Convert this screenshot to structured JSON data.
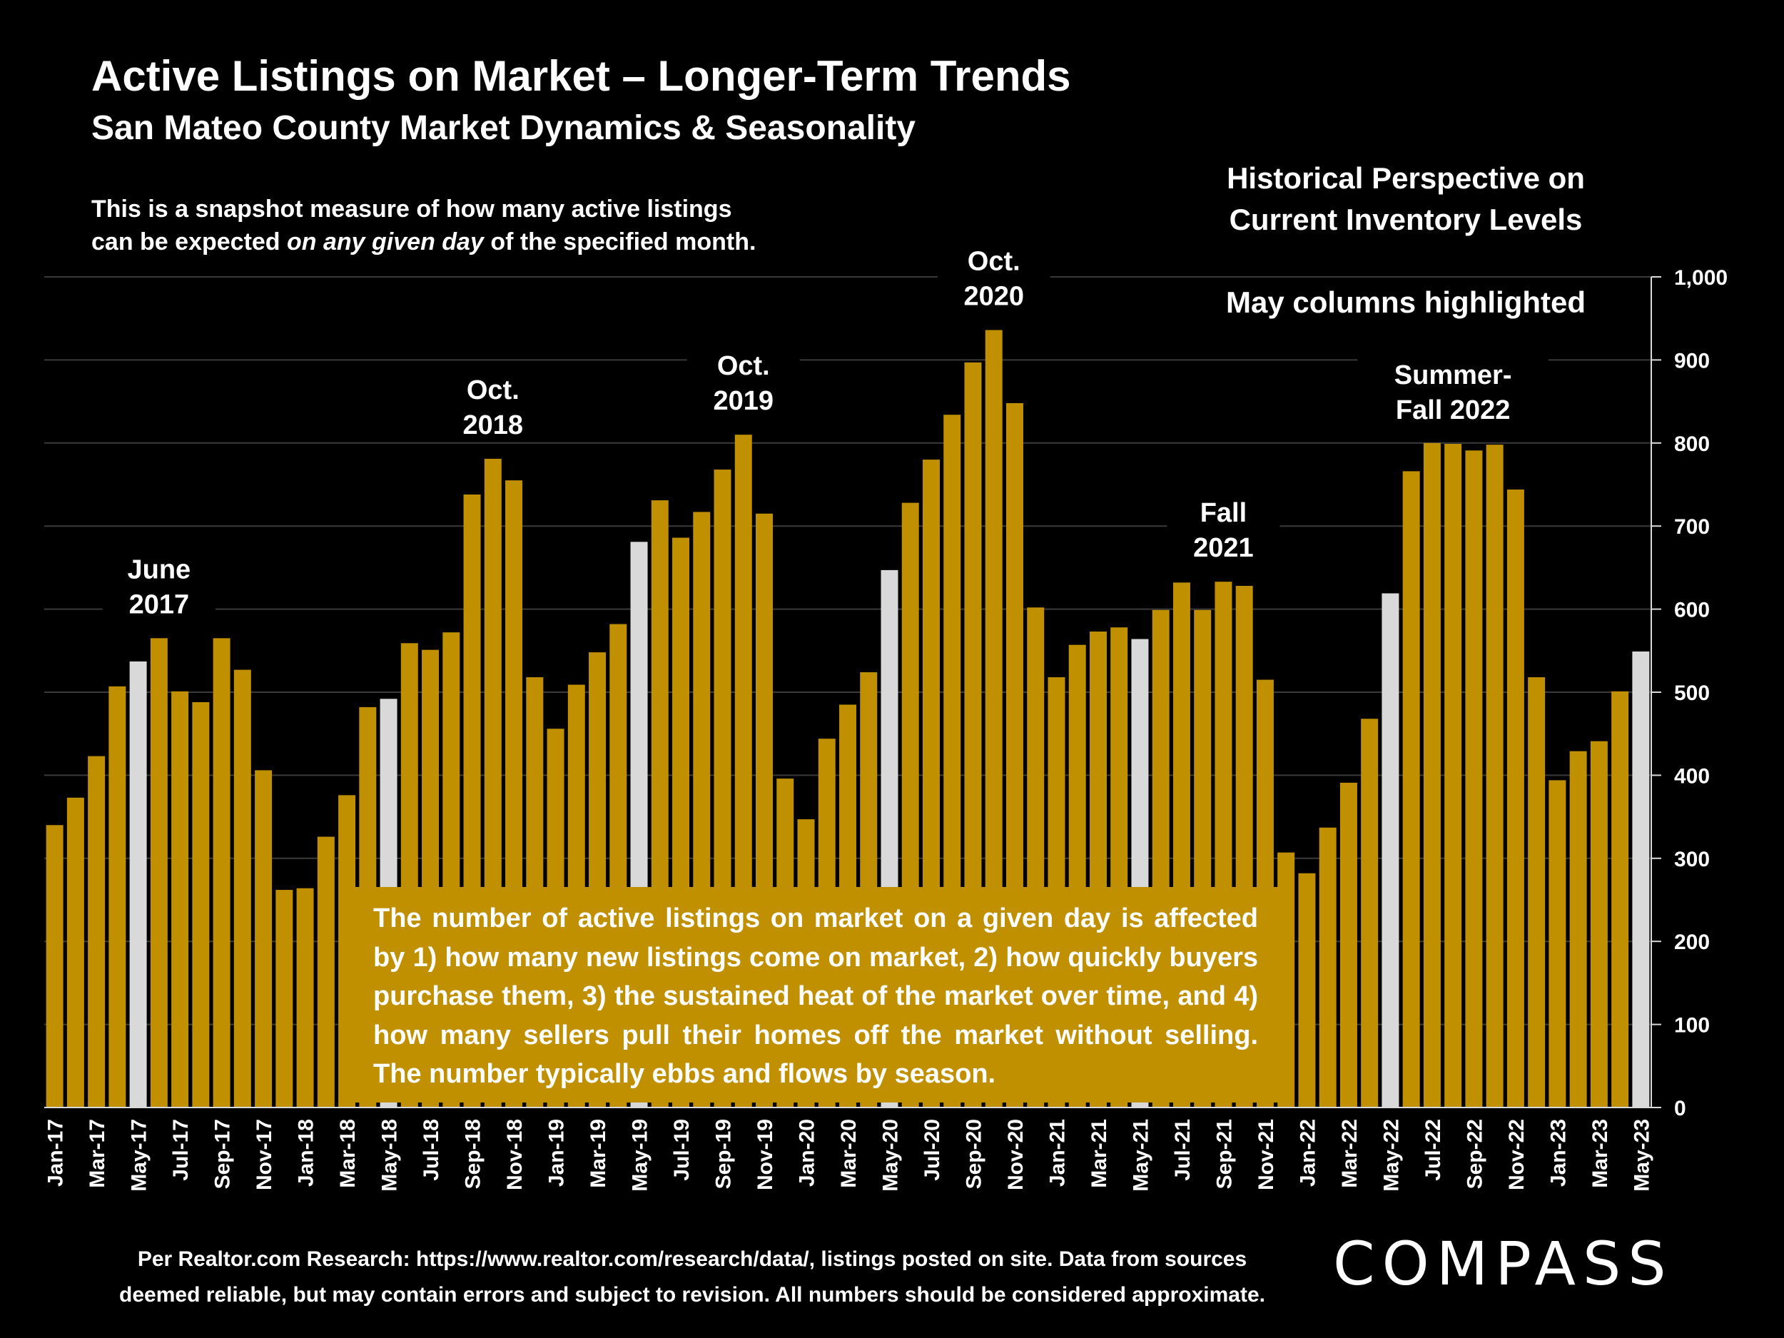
{
  "header": {
    "title": "Active Listings on Market – Longer-Term Trends",
    "subtitle": "San Mateo County Market Dynamics & Seasonality",
    "note_line1": "This is a snapshot measure of how many active listings",
    "note_line2_pre": "can be expected ",
    "note_line2_em": "on any given day",
    "note_line2_post": " of the specified month."
  },
  "perspective": {
    "line1": "Historical Perspective on",
    "line2": "Current Inventory Levels",
    "highlight_note": "May columns highlighted"
  },
  "info_box": {
    "text": "The number of active listings on market on a given day is affected by 1) how many new listings come on market, 2) how quickly buyers purchase them, 3) the sustained heat of the market over time, and 4) how many sellers pull their homes off the market without selling. The number typically ebbs and flows by season."
  },
  "footer": {
    "source_line1": "Per Realtor.com Research:  https://www.realtor.com/research/data/, listings posted on site. Data from sources",
    "source_line2": "deemed reliable, but may contain errors and subject to revision. All numbers should be considered approximate.",
    "logo": "COMPASS"
  },
  "chart_data": {
    "type": "bar",
    "ylim": [
      0,
      1000
    ],
    "yticks": [
      "0",
      "100",
      "200",
      "300",
      "400",
      "500",
      "600",
      "700",
      "800",
      "900",
      "1,000"
    ],
    "y_axis_position": "right",
    "grid": true,
    "colors": {
      "bar": "#c09000",
      "highlight": "#d9d9d9",
      "background": "#000000"
    },
    "categories": [
      "Jan-17",
      "Feb-17",
      "Mar-17",
      "Apr-17",
      "May-17",
      "Jun-17",
      "Jul-17",
      "Aug-17",
      "Sep-17",
      "Oct-17",
      "Nov-17",
      "Dec-17",
      "Jan-18",
      "Feb-18",
      "Mar-18",
      "Apr-18",
      "May-18",
      "Jun-18",
      "Jul-18",
      "Aug-18",
      "Sep-18",
      "Oct-18",
      "Nov-18",
      "Dec-18",
      "Jan-19",
      "Feb-19",
      "Mar-19",
      "Apr-19",
      "May-19",
      "Jun-19",
      "Jul-19",
      "Aug-19",
      "Sep-19",
      "Oct-19",
      "Nov-19",
      "Dec-19",
      "Jan-20",
      "Feb-20",
      "Mar-20",
      "Apr-20",
      "May-20",
      "Jun-20",
      "Jul-20",
      "Aug-20",
      "Sep-20",
      "Oct-20",
      "Nov-20",
      "Dec-20",
      "Jan-21",
      "Feb-21",
      "Mar-21",
      "Apr-21",
      "May-21",
      "Jun-21",
      "Jul-21",
      "Aug-21",
      "Sep-21",
      "Oct-21",
      "Nov-21",
      "Dec-21",
      "Jan-22",
      "Feb-22",
      "Mar-22",
      "Apr-22",
      "May-22",
      "Jun-22",
      "Jul-22",
      "Aug-22",
      "Sep-22",
      "Oct-22",
      "Nov-22",
      "Dec-22",
      "Jan-23",
      "Feb-23",
      "Mar-23",
      "Apr-23",
      "May-23"
    ],
    "values": [
      340,
      373,
      423,
      507,
      537,
      565,
      501,
      488,
      565,
      527,
      406,
      262,
      264,
      326,
      376,
      482,
      492,
      559,
      551,
      572,
      738,
      781,
      755,
      518,
      456,
      509,
      548,
      582,
      681,
      731,
      686,
      717,
      768,
      810,
      715,
      396,
      347,
      444,
      485,
      524,
      647,
      728,
      780,
      834,
      897,
      936,
      848,
      602,
      518,
      557,
      573,
      578,
      564,
      599,
      632,
      599,
      633,
      628,
      515,
      307,
      282,
      337,
      391,
      468,
      619,
      766,
      800,
      799,
      791,
      798,
      744,
      518,
      394,
      429,
      441,
      501,
      549
    ],
    "highlighted_categories": [
      "May-17",
      "May-18",
      "May-19",
      "May-20",
      "May-21",
      "May-22",
      "May-23"
    ],
    "annotations": [
      {
        "category": "Jun-17",
        "line1": "June",
        "line2": "2017"
      },
      {
        "category": "Oct-18",
        "line1": "Oct.",
        "line2": "2018"
      },
      {
        "category": "Oct-19",
        "line1": "Oct.",
        "line2": "2019"
      },
      {
        "category": "Oct-20",
        "line1": "Oct.",
        "line2": "2020"
      },
      {
        "category": "Sep-21",
        "line1": "Fall",
        "line2": "2021"
      },
      {
        "category": "Aug-22",
        "line1": "Summer-",
        "line2": "Fall 2022"
      }
    ]
  }
}
